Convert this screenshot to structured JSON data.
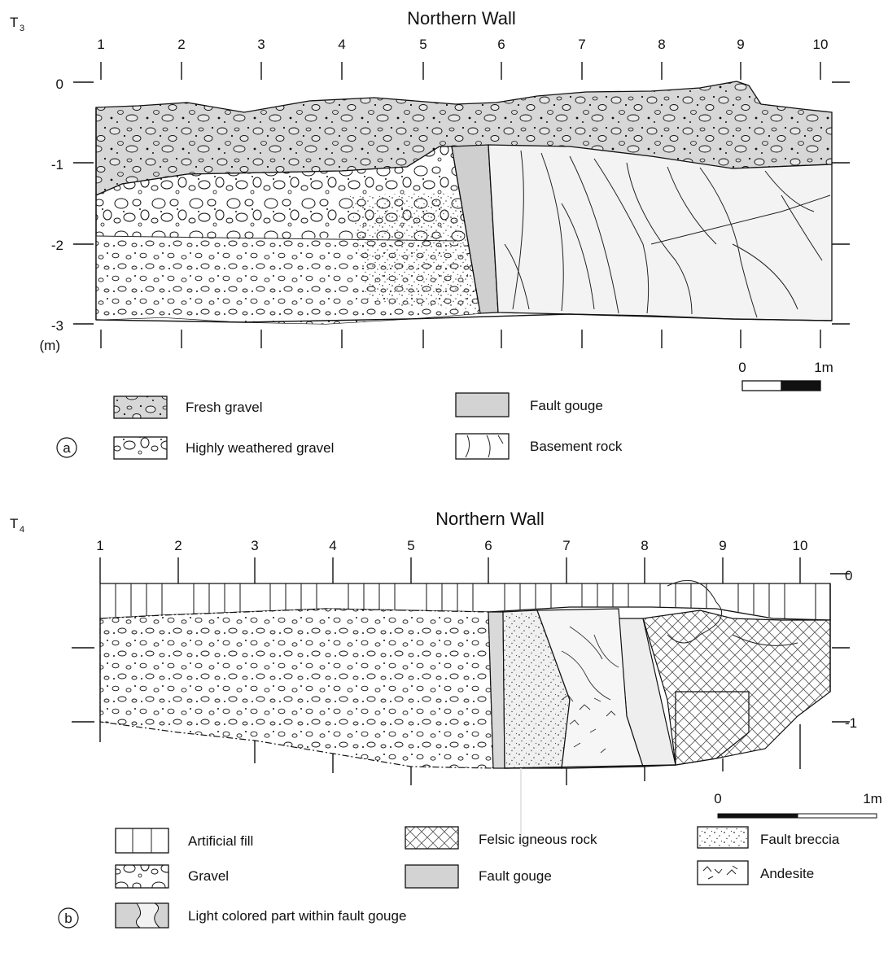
{
  "panel_a": {
    "trench_label": "T",
    "trench_sub": "3",
    "title": "Northern Wall",
    "columns": [
      "1",
      "2",
      "3",
      "4",
      "5",
      "6",
      "7",
      "8",
      "9",
      "10"
    ],
    "depth_labels": [
      "0",
      "-1",
      "-2",
      "-3"
    ],
    "depth_unit": "(m)",
    "scale_labels": [
      "0",
      "1m"
    ],
    "panel_letter": "a",
    "legend": [
      "Fresh gravel",
      "Highly weathered gravel",
      "Fault gouge",
      "Basement rock"
    ]
  },
  "panel_b": {
    "trench_label": "T",
    "trench_sub": "4",
    "title": "Northern Wall",
    "columns": [
      "1",
      "2",
      "3",
      "4",
      "5",
      "6",
      "7",
      "8",
      "9",
      "10"
    ],
    "depth_labels": [
      "0",
      "-1"
    ],
    "scale_labels": [
      "0",
      "1m"
    ],
    "panel_letter": "b",
    "legend": [
      "Artificial fill",
      "Felsic igneous rock",
      "Fault breccia",
      "Gravel",
      "Fault gouge",
      "Andesite",
      "Light colored part within fault gouge"
    ]
  }
}
